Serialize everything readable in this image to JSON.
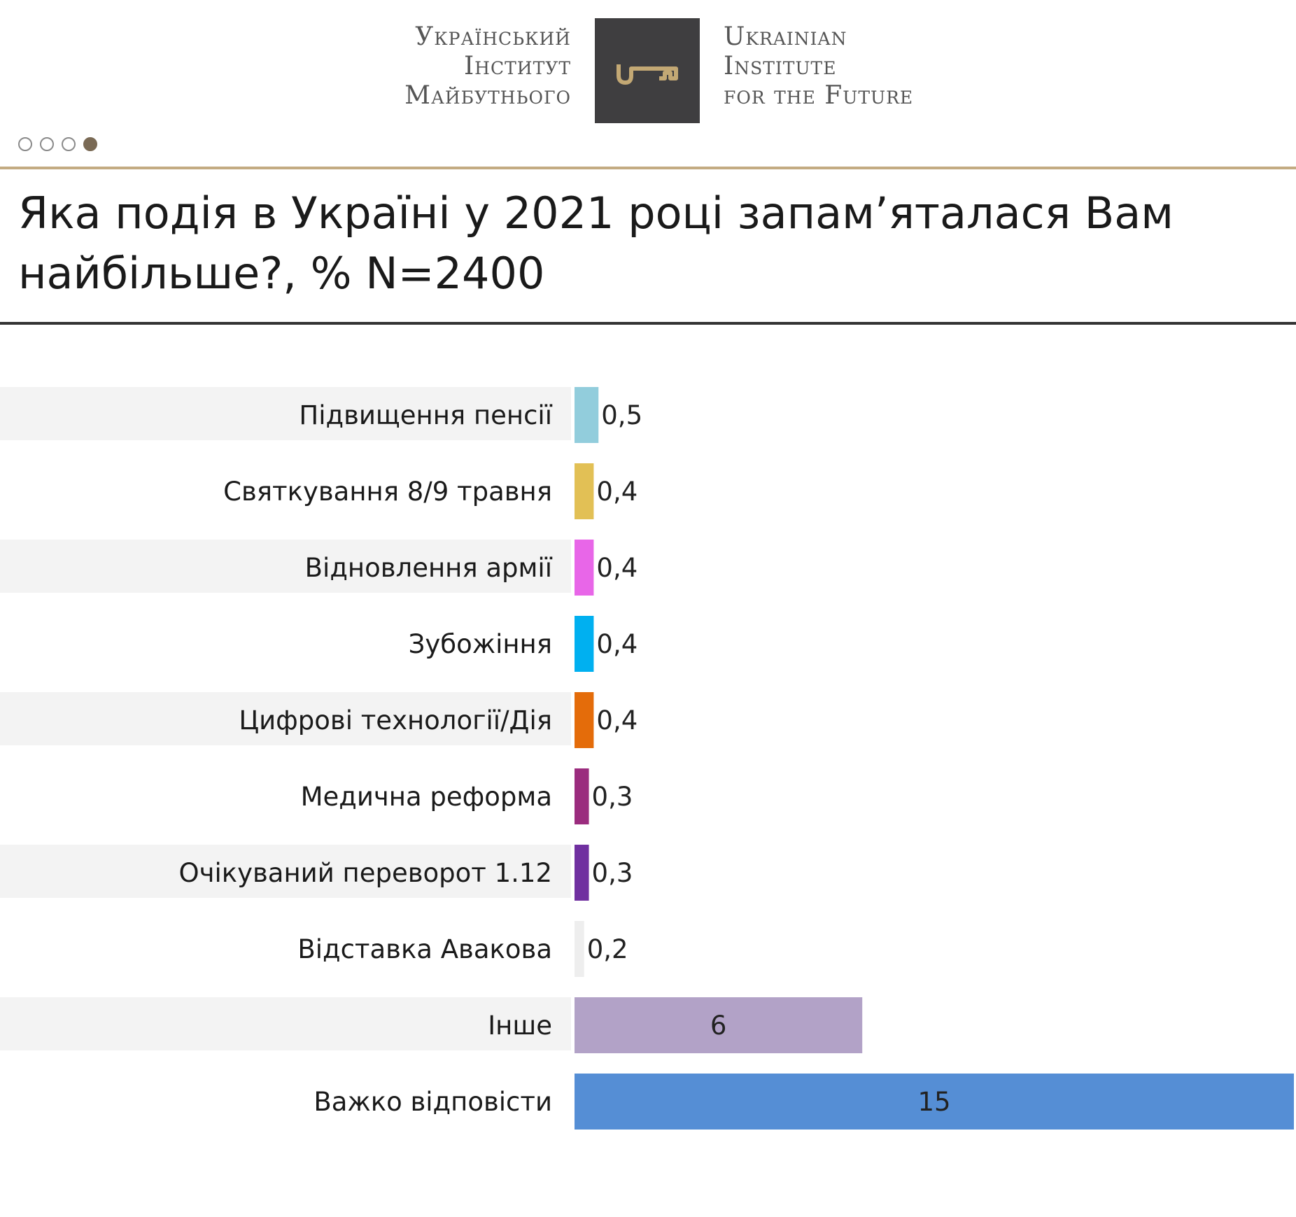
{
  "header": {
    "logo_ua": [
      "Український",
      "Інститут",
      "Майбутнього"
    ],
    "logo_en": [
      "Ukrainian",
      "Institute",
      "for the Future"
    ],
    "logo_icon": "key-icon",
    "pagination": {
      "total": 4,
      "active": 4
    }
  },
  "chart_data": {
    "type": "bar",
    "orientation": "horizontal",
    "title": "Яка подія в Україні у 2021 році запам’яталася Вам найбільше?, % N=2400",
    "xlabel": "",
    "ylabel": "",
    "categories": [
      "Підвищення пенсії",
      "Святкування 8/9 травня",
      "Відновлення армії",
      "Зубожіння",
      "Цифрові технології/Дія",
      "Медична реформа",
      "Очікуваний переворот 1.12",
      "Відставка Авакова",
      "Інше",
      "Важко відповісти"
    ],
    "values": [
      0.5,
      0.4,
      0.4,
      0.4,
      0.4,
      0.3,
      0.3,
      0.2,
      6,
      15
    ],
    "value_labels": [
      "0,5",
      "0,4",
      "0,4",
      "0,4",
      "0,4",
      "0,3",
      "0,3",
      "0,2",
      "6",
      "15"
    ],
    "colors": [
      "#92cddc",
      "#e2c055",
      "#e866e8",
      "#00b0f0",
      "#e46c0a",
      "#9b2c7e",
      "#7030a0",
      "#eeeeee",
      "#b2a2c7",
      "#558ed5"
    ],
    "xlim": [
      0,
      15
    ],
    "grid": false,
    "legend": "none",
    "row_stripe_color": "#f3f3f3"
  }
}
